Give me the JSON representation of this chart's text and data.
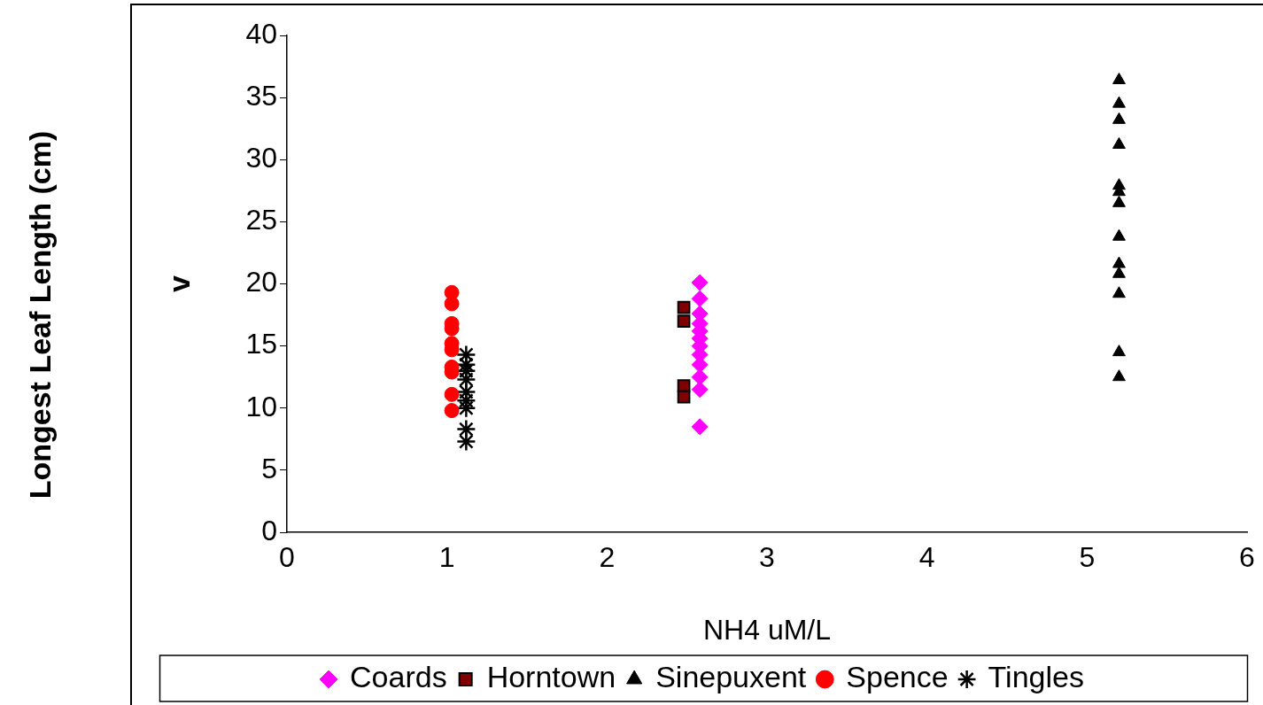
{
  "chart_data": {
    "type": "scatter",
    "xlabel": "NH4 uM/L",
    "ylabel": "v",
    "annotations": [
      "Longest Leaf Length (cm)"
    ],
    "xlim": [
      0,
      6
    ],
    "xticks": [
      0,
      1,
      2,
      3,
      4,
      5,
      6
    ],
    "ylim": [
      0,
      40
    ],
    "yticks": [
      0,
      5,
      10,
      15,
      20,
      25,
      30,
      35,
      40
    ],
    "grid": false,
    "legend": "bottom",
    "series": [
      {
        "name": "Coards",
        "color": "#ff00ff",
        "marker": "diamond",
        "x": [
          2.58,
          2.58,
          2.58,
          2.58,
          2.58,
          2.58,
          2.58,
          2.58,
          2.58,
          2.58,
          2.58,
          2.58
        ],
        "values": [
          20.1,
          18.8,
          17.6,
          16.8,
          16.2,
          15.6,
          15.0,
          14.3,
          13.5,
          12.5,
          11.5,
          8.5
        ]
      },
      {
        "name": "Horntown",
        "color": "#800000",
        "marker": "square",
        "x": [
          2.48,
          2.48,
          2.48,
          2.48
        ],
        "values": [
          18.1,
          17.0,
          11.8,
          10.9
        ]
      },
      {
        "name": "Sinepuxent",
        "color": "#000000",
        "marker": "triangle",
        "x": [
          5.2,
          5.2,
          5.2,
          5.2,
          5.2,
          5.2,
          5.2,
          5.2,
          5.2,
          5.2,
          5.2,
          5.2,
          5.2
        ],
        "values": [
          36.4,
          34.5,
          33.2,
          31.2,
          27.9,
          27.4,
          26.5,
          23.8,
          21.6,
          20.8,
          19.2,
          14.5,
          12.5
        ]
      },
      {
        "name": "Spence",
        "color": "#ff0000",
        "marker": "circle",
        "x": [
          1.03,
          1.03,
          1.03,
          1.03,
          1.03,
          1.03,
          1.03,
          1.03,
          1.03,
          1.03
        ],
        "values": [
          19.3,
          18.4,
          16.8,
          16.4,
          15.2,
          14.7,
          13.3,
          12.9,
          11.1,
          9.8
        ]
      },
      {
        "name": "Tingles",
        "color": "#000000",
        "marker": "cross",
        "x": [
          1.12,
          1.12,
          1.12,
          1.12,
          1.12,
          1.12,
          1.12,
          1.12,
          1.12
        ],
        "values": [
          14.3,
          13.5,
          13.0,
          12.3,
          11.3,
          10.6,
          10.0,
          8.3,
          7.3
        ]
      }
    ]
  }
}
